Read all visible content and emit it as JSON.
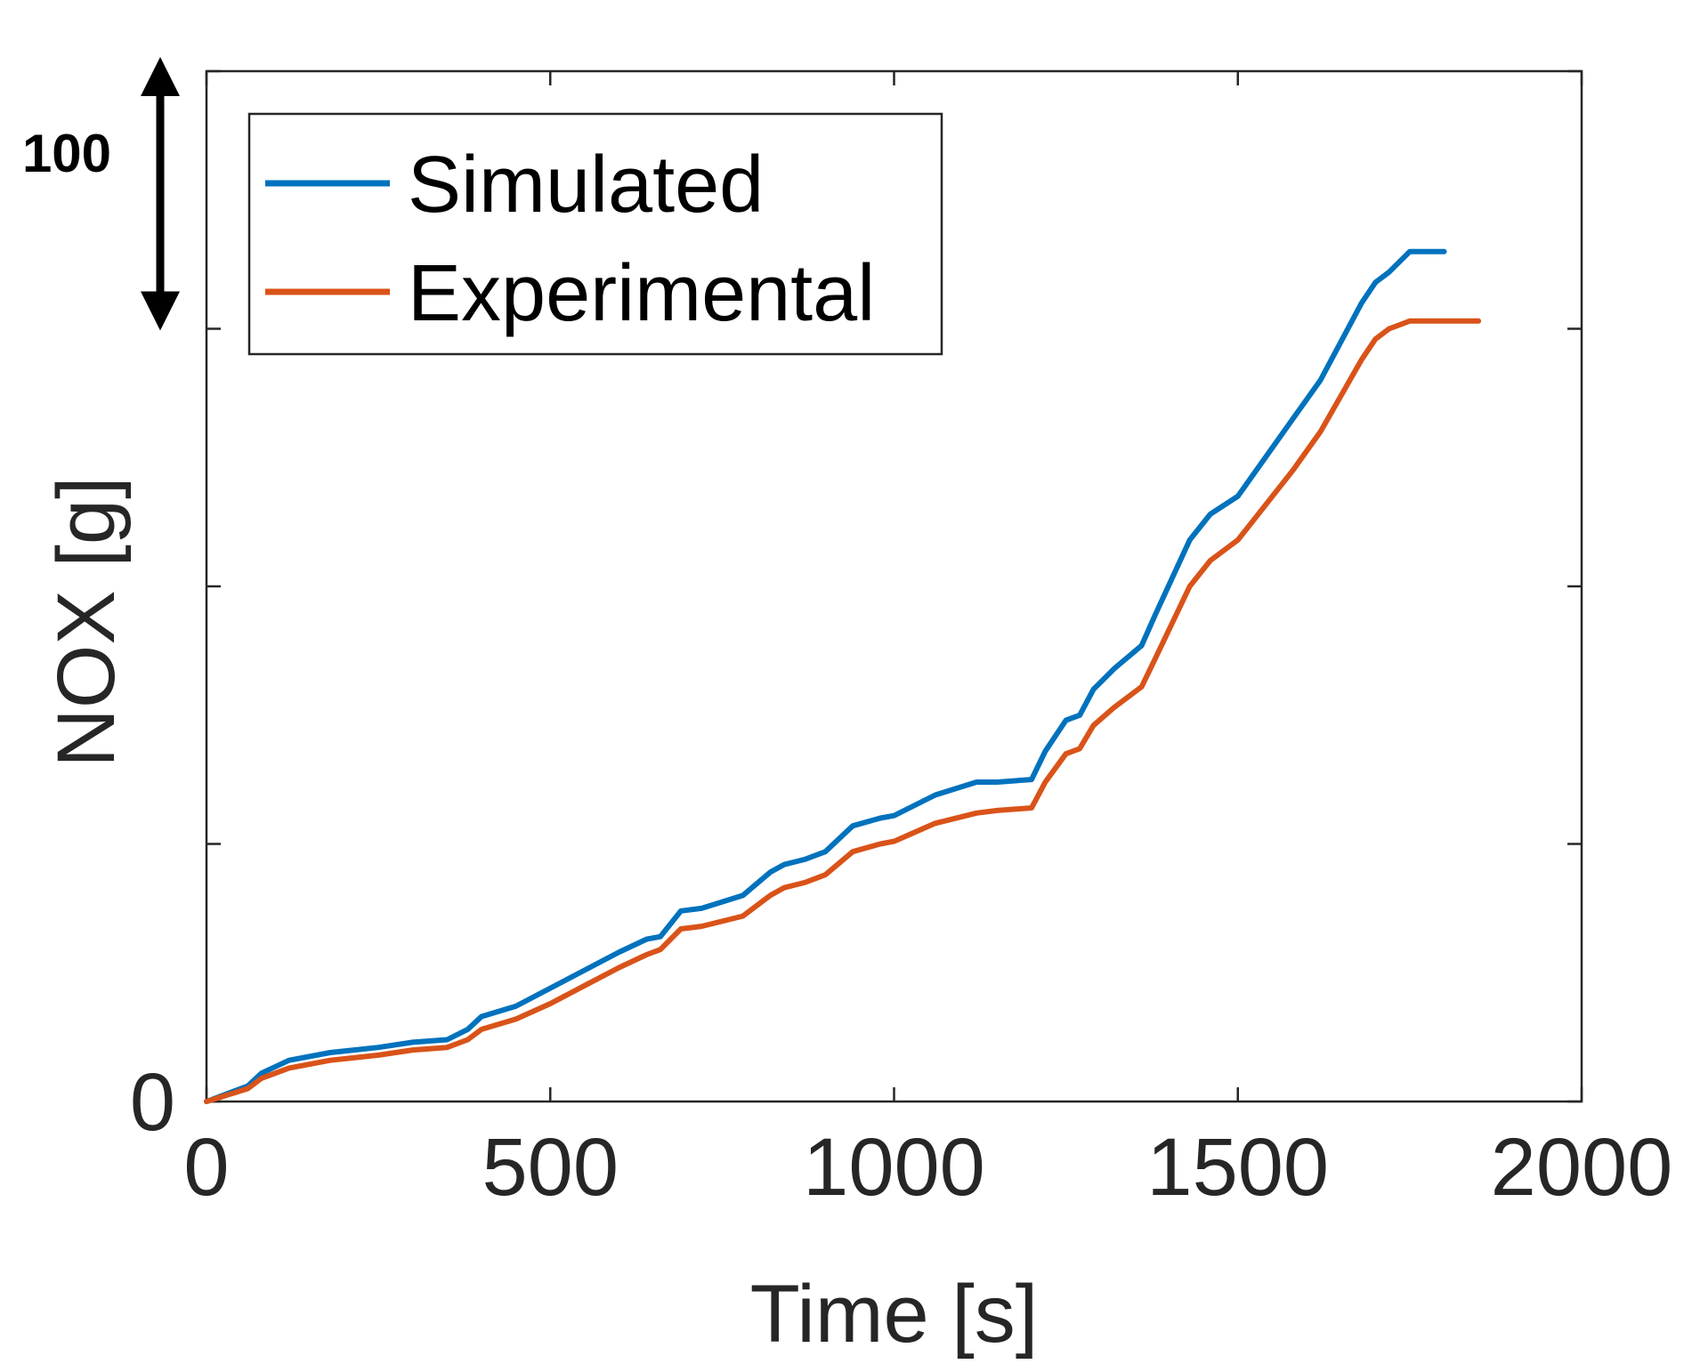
{
  "chart_data": {
    "type": "line",
    "title": "",
    "xlabel": "Time [s]",
    "ylabel": "NOX [g]",
    "xlim": [
      0,
      2000
    ],
    "ylim": [
      0,
      400
    ],
    "xticks": [
      0,
      500,
      1000,
      1500,
      2000
    ],
    "xtick_labels": [
      "0",
      "500",
      "1000",
      "1500",
      "2000"
    ],
    "yticks": [
      0,
      100,
      200,
      300,
      400
    ],
    "ytick_labels": [
      "0",
      "",
      "",
      "",
      ""
    ],
    "grid": false,
    "legend_position": "top-left",
    "scale_annotation": {
      "label": "100",
      "from": 300,
      "to": 400
    },
    "series": [
      {
        "name": "Simulated",
        "color": "#0072BD",
        "x": [
          0,
          60,
          80,
          120,
          180,
          250,
          300,
          350,
          380,
          400,
          450,
          500,
          550,
          600,
          640,
          660,
          690,
          720,
          780,
          820,
          840,
          870,
          900,
          940,
          980,
          1000,
          1060,
          1120,
          1150,
          1200,
          1220,
          1250,
          1270,
          1290,
          1320,
          1360,
          1380,
          1430,
          1460,
          1500,
          1580,
          1620,
          1680,
          1700,
          1720,
          1750,
          1800
        ],
        "y": [
          0,
          6,
          11,
          16,
          19,
          21,
          23,
          24,
          28,
          33,
          37,
          44,
          51,
          58,
          63,
          64,
          74,
          75,
          80,
          89,
          92,
          94,
          97,
          107,
          110,
          111,
          119,
          124,
          124,
          125,
          136,
          148,
          150,
          160,
          168,
          177,
          189,
          218,
          228,
          235,
          265,
          280,
          310,
          318,
          322,
          330,
          330
        ]
      },
      {
        "name": "Experimental",
        "color": "#D95319",
        "x": [
          0,
          60,
          80,
          120,
          180,
          250,
          300,
          350,
          380,
          400,
          450,
          500,
          550,
          600,
          640,
          660,
          690,
          720,
          780,
          820,
          840,
          870,
          900,
          940,
          980,
          1000,
          1060,
          1120,
          1150,
          1200,
          1220,
          1250,
          1270,
          1290,
          1320,
          1360,
          1380,
          1430,
          1460,
          1500,
          1580,
          1620,
          1680,
          1700,
          1720,
          1750,
          1800,
          1850
        ],
        "y": [
          0,
          5,
          9,
          13,
          16,
          18,
          20,
          21,
          24,
          28,
          32,
          38,
          45,
          52,
          57,
          59,
          67,
          68,
          72,
          80,
          83,
          85,
          88,
          97,
          100,
          101,
          108,
          112,
          113,
          114,
          124,
          135,
          137,
          146,
          153,
          161,
          172,
          200,
          210,
          218,
          245,
          260,
          288,
          296,
          300,
          303,
          303,
          303
        ]
      }
    ]
  }
}
